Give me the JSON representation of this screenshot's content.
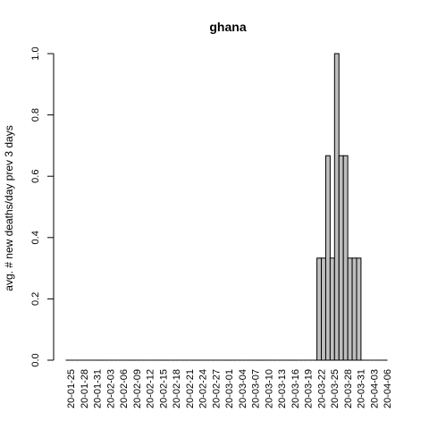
{
  "chart_data": {
    "type": "bar",
    "title": "ghana",
    "xlabel": "",
    "ylabel": "avg. # new deaths/day prev  3  days",
    "ylim": [
      0,
      1
    ],
    "y_ticks": [
      "0.0",
      "0.2",
      "0.4",
      "0.6",
      "0.8",
      "1.0"
    ],
    "x_tick_labels": [
      "20-01-25",
      "20-01-28",
      "20-01-31",
      "20-02-03",
      "20-02-06",
      "20-02-09",
      "20-02-12",
      "20-02-15",
      "20-02-18",
      "20-02-21",
      "20-02-24",
      "20-02-27",
      "20-03-01",
      "20-03-04",
      "20-03-07",
      "20-03-10",
      "20-03-13",
      "20-03-16",
      "20-03-19",
      "20-03-22",
      "20-03-25",
      "20-03-28",
      "20-03-31",
      "20-04-03",
      "20-04-06"
    ],
    "categories": [
      "20-01-25",
      "20-01-26",
      "20-01-27",
      "20-01-28",
      "20-01-29",
      "20-01-30",
      "20-01-31",
      "20-02-01",
      "20-02-02",
      "20-02-03",
      "20-02-04",
      "20-02-05",
      "20-02-06",
      "20-02-07",
      "20-02-08",
      "20-02-09",
      "20-02-10",
      "20-02-11",
      "20-02-12",
      "20-02-13",
      "20-02-14",
      "20-02-15",
      "20-02-16",
      "20-02-17",
      "20-02-18",
      "20-02-19",
      "20-02-20",
      "20-02-21",
      "20-02-22",
      "20-02-23",
      "20-02-24",
      "20-02-25",
      "20-02-26",
      "20-02-27",
      "20-02-28",
      "20-02-29",
      "20-03-01",
      "20-03-02",
      "20-03-03",
      "20-03-04",
      "20-03-05",
      "20-03-06",
      "20-03-07",
      "20-03-08",
      "20-03-09",
      "20-03-10",
      "20-03-11",
      "20-03-12",
      "20-03-13",
      "20-03-14",
      "20-03-15",
      "20-03-16",
      "20-03-17",
      "20-03-18",
      "20-03-19",
      "20-03-20",
      "20-03-21",
      "20-03-22",
      "20-03-23",
      "20-03-24",
      "20-03-25",
      "20-03-26",
      "20-03-27",
      "20-03-28",
      "20-03-29",
      "20-03-30",
      "20-03-31",
      "20-04-01",
      "20-04-02",
      "20-04-03",
      "20-04-04",
      "20-04-05",
      "20-04-06"
    ],
    "values": [
      0,
      0,
      0,
      0,
      0,
      0,
      0,
      0,
      0,
      0,
      0,
      0,
      0,
      0,
      0,
      0,
      0,
      0,
      0,
      0,
      0,
      0,
      0,
      0,
      0,
      0,
      0,
      0,
      0,
      0,
      0,
      0,
      0,
      0,
      0,
      0,
      0,
      0,
      0,
      0,
      0,
      0,
      0,
      0,
      0,
      0,
      0,
      0,
      0,
      0,
      0,
      0,
      0,
      0,
      0,
      0,
      0,
      0.333,
      0.333,
      0.667,
      0.333,
      1.0,
      0.667,
      0.667,
      0.333,
      0.333,
      0.333,
      0,
      0,
      0,
      0,
      0,
      0
    ],
    "bar_color": "#bebebe",
    "grid": false
  }
}
